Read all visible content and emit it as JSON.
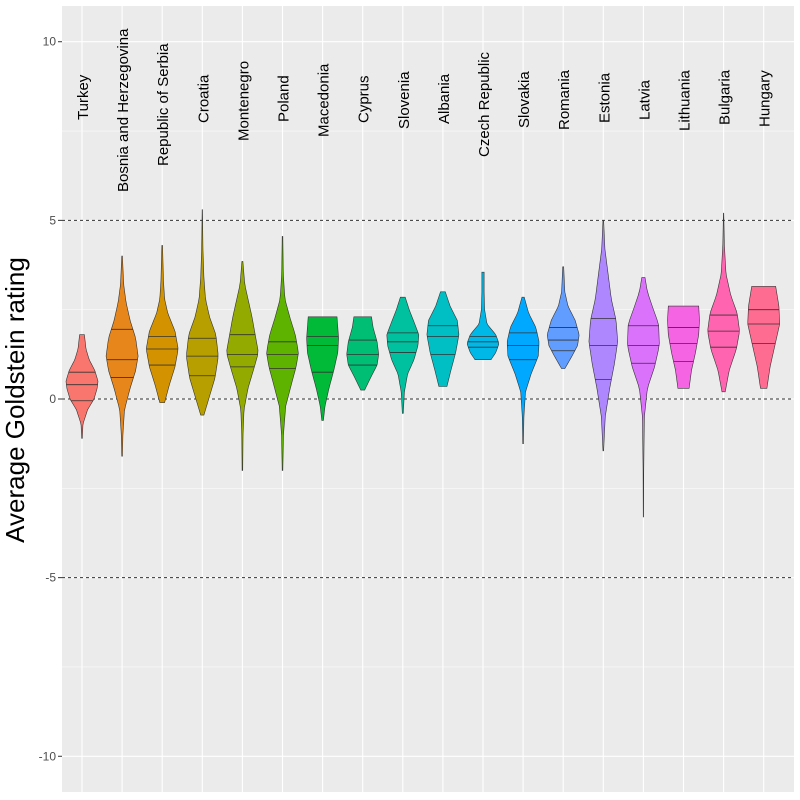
{
  "chart_data": {
    "type": "violin",
    "ylabel": "Average Goldstein rating",
    "ylim": [
      -11,
      11
    ],
    "yticks": [
      "-10",
      "-5",
      "0",
      "5",
      "10"
    ],
    "ytick_values": [
      -10,
      -5,
      0,
      5,
      10
    ],
    "dashed_reference_lines": [
      5,
      0,
      -5
    ],
    "grid": true,
    "legend": "none",
    "series": [
      {
        "name": "Turkey",
        "color": "#F8766D",
        "min": -1.1,
        "max": 1.8,
        "q1": -0.05,
        "median": 0.4,
        "q3": 0.75,
        "profile": [
          [
            -1.1,
            0.02
          ],
          [
            -0.7,
            0.06
          ],
          [
            -0.3,
            0.35
          ],
          [
            0.0,
            0.75
          ],
          [
            0.3,
            0.95
          ],
          [
            0.5,
            1.0
          ],
          [
            0.8,
            0.8
          ],
          [
            1.1,
            0.45
          ],
          [
            1.4,
            0.25
          ],
          [
            1.8,
            0.15
          ]
        ]
      },
      {
        "name": "Bosnia and Herzegovina",
        "color": "#E7861B",
        "min": -1.6,
        "max": 4.0,
        "q1": 0.6,
        "median": 1.1,
        "q3": 1.95,
        "profile": [
          [
            -1.6,
            0.02
          ],
          [
            -1.0,
            0.05
          ],
          [
            -0.3,
            0.15
          ],
          [
            0.3,
            0.5
          ],
          [
            0.8,
            0.85
          ],
          [
            1.2,
            1.0
          ],
          [
            1.7,
            0.85
          ],
          [
            2.2,
            0.5
          ],
          [
            2.7,
            0.25
          ],
          [
            3.2,
            0.1
          ],
          [
            4.0,
            0.02
          ]
        ]
      },
      {
        "name": "Republic of Serbia",
        "color": "#D39200",
        "min": -0.1,
        "max": 4.3,
        "q1": 0.95,
        "median": 1.4,
        "q3": 1.75,
        "profile": [
          [
            -0.1,
            0.15
          ],
          [
            0.4,
            0.45
          ],
          [
            0.9,
            0.8
          ],
          [
            1.4,
            1.0
          ],
          [
            1.9,
            0.8
          ],
          [
            2.4,
            0.35
          ],
          [
            2.8,
            0.15
          ],
          [
            3.3,
            0.08
          ],
          [
            4.3,
            0.02
          ]
        ]
      },
      {
        "name": "Croatia",
        "color": "#B79F00",
        "min": -0.45,
        "max": 5.3,
        "q1": 0.65,
        "median": 1.2,
        "q3": 1.7,
        "profile": [
          [
            -0.45,
            0.1
          ],
          [
            0.0,
            0.4
          ],
          [
            0.6,
            0.8
          ],
          [
            1.2,
            1.0
          ],
          [
            1.8,
            0.85
          ],
          [
            2.3,
            0.45
          ],
          [
            2.8,
            0.2
          ],
          [
            3.4,
            0.1
          ],
          [
            4.2,
            0.04
          ],
          [
            5.3,
            0.01
          ]
        ]
      },
      {
        "name": "Montenegro",
        "color": "#93AA00",
        "min": -2.0,
        "max": 3.85,
        "q1": 0.9,
        "median": 1.25,
        "q3": 1.8,
        "profile": [
          [
            -2.0,
            0.02
          ],
          [
            -1.0,
            0.04
          ],
          [
            -0.3,
            0.1
          ],
          [
            0.3,
            0.35
          ],
          [
            0.9,
            0.75
          ],
          [
            1.3,
            1.0
          ],
          [
            1.8,
            0.8
          ],
          [
            2.3,
            0.6
          ],
          [
            2.7,
            0.4
          ],
          [
            3.2,
            0.15
          ],
          [
            3.85,
            0.03
          ]
        ]
      },
      {
        "name": "Poland",
        "color": "#5EB300",
        "min": -2.0,
        "max": 4.55,
        "q1": 0.85,
        "median": 1.25,
        "q3": 1.6,
        "profile": [
          [
            -2.0,
            0.02
          ],
          [
            -1.0,
            0.06
          ],
          [
            -0.2,
            0.2
          ],
          [
            0.4,
            0.55
          ],
          [
            0.9,
            0.85
          ],
          [
            1.3,
            1.0
          ],
          [
            1.8,
            0.8
          ],
          [
            2.3,
            0.45
          ],
          [
            2.8,
            0.15
          ],
          [
            3.5,
            0.05
          ],
          [
            4.55,
            0.02
          ]
        ]
      },
      {
        "name": "Macedonia",
        "color": "#00BA38",
        "min": -0.6,
        "max": 2.3,
        "q1": 0.75,
        "median": 1.5,
        "q3": 1.75,
        "profile": [
          [
            -0.6,
            0.05
          ],
          [
            -0.2,
            0.15
          ],
          [
            0.3,
            0.4
          ],
          [
            0.8,
            0.7
          ],
          [
            1.3,
            0.95
          ],
          [
            1.7,
            1.0
          ],
          [
            2.0,
            0.95
          ],
          [
            2.3,
            0.9
          ]
        ]
      },
      {
        "name": "Cyprus",
        "color": "#00BF74",
        "min": 0.25,
        "max": 2.3,
        "q1": 0.95,
        "median": 1.25,
        "q3": 1.65,
        "profile": [
          [
            0.25,
            0.12
          ],
          [
            0.6,
            0.5
          ],
          [
            0.95,
            0.9
          ],
          [
            1.25,
            1.0
          ],
          [
            1.6,
            0.9
          ],
          [
            2.0,
            0.65
          ],
          [
            2.3,
            0.55
          ]
        ]
      },
      {
        "name": "Slovenia",
        "color": "#00C19F",
        "min": -0.4,
        "max": 2.85,
        "q1": 1.3,
        "median": 1.6,
        "q3": 1.85,
        "profile": [
          [
            -0.4,
            0.03
          ],
          [
            0.2,
            0.1
          ],
          [
            0.7,
            0.3
          ],
          [
            1.1,
            0.7
          ],
          [
            1.5,
            0.95
          ],
          [
            1.8,
            1.0
          ],
          [
            2.1,
            0.75
          ],
          [
            2.5,
            0.4
          ],
          [
            2.85,
            0.15
          ]
        ]
      },
      {
        "name": "Albania",
        "color": "#00BFC4",
        "min": 0.35,
        "max": 3.0,
        "q1": 1.25,
        "median": 1.75,
        "q3": 2.05,
        "profile": [
          [
            0.35,
            0.25
          ],
          [
            0.8,
            0.5
          ],
          [
            1.3,
            0.8
          ],
          [
            1.8,
            1.0
          ],
          [
            2.2,
            0.9
          ],
          [
            2.6,
            0.45
          ],
          [
            3.0,
            0.15
          ]
        ]
      },
      {
        "name": "Czech Republic",
        "color": "#00B8E7",
        "min": 1.1,
        "max": 3.55,
        "q1": 1.45,
        "median": 1.6,
        "q3": 1.75,
        "profile": [
          [
            1.1,
            0.5
          ],
          [
            1.3,
            0.8
          ],
          [
            1.55,
            1.0
          ],
          [
            1.8,
            0.8
          ],
          [
            2.1,
            0.25
          ],
          [
            2.5,
            0.1
          ],
          [
            3.0,
            0.07
          ],
          [
            3.55,
            0.07
          ]
        ]
      },
      {
        "name": "Slovakia",
        "color": "#00A9FF",
        "min": -1.25,
        "max": 2.85,
        "q1": 1.1,
        "median": 1.5,
        "q3": 1.85,
        "profile": [
          [
            -1.25,
            0.02
          ],
          [
            -0.5,
            0.05
          ],
          [
            0.2,
            0.15
          ],
          [
            0.7,
            0.5
          ],
          [
            1.2,
            0.95
          ],
          [
            1.6,
            1.0
          ],
          [
            2.0,
            0.8
          ],
          [
            2.4,
            0.35
          ],
          [
            2.85,
            0.07
          ]
        ]
      },
      {
        "name": "Romania",
        "color": "#619CFF",
        "min": 0.85,
        "max": 3.7,
        "q1": 1.35,
        "median": 1.65,
        "q3": 2.0,
        "profile": [
          [
            0.85,
            0.1
          ],
          [
            1.2,
            0.55
          ],
          [
            1.5,
            0.9
          ],
          [
            1.8,
            1.0
          ],
          [
            2.2,
            0.75
          ],
          [
            2.6,
            0.3
          ],
          [
            3.0,
            0.1
          ],
          [
            3.7,
            0.03
          ]
        ]
      },
      {
        "name": "Estonia",
        "color": "#AE87FF",
        "min": -1.45,
        "max": 5.0,
        "q1": 0.55,
        "median": 1.5,
        "q3": 2.25,
        "profile": [
          [
            -1.45,
            0.02
          ],
          [
            -0.5,
            0.12
          ],
          [
            0.3,
            0.4
          ],
          [
            1.0,
            0.7
          ],
          [
            1.6,
            0.9
          ],
          [
            2.2,
            0.8
          ],
          [
            2.8,
            0.5
          ],
          [
            3.5,
            0.3
          ],
          [
            4.2,
            0.1
          ],
          [
            5.0,
            0.02
          ]
        ]
      },
      {
        "name": "Latvia",
        "color": "#DB72FB",
        "min": -3.3,
        "max": 3.4,
        "q1": 1.0,
        "median": 1.5,
        "q3": 2.05,
        "profile": [
          [
            -3.3,
            0.01
          ],
          [
            -2.0,
            0.02
          ],
          [
            -0.5,
            0.06
          ],
          [
            0.3,
            0.25
          ],
          [
            0.9,
            0.7
          ],
          [
            1.5,
            1.0
          ],
          [
            2.1,
            0.95
          ],
          [
            2.6,
            0.55
          ],
          [
            3.0,
            0.25
          ],
          [
            3.4,
            0.1
          ]
        ]
      },
      {
        "name": "Lithuania",
        "color": "#F564E3",
        "min": 0.3,
        "max": 2.6,
        "q1": 1.05,
        "median": 1.55,
        "q3": 2.0,
        "profile": [
          [
            0.3,
            0.35
          ],
          [
            0.8,
            0.5
          ],
          [
            1.3,
            0.75
          ],
          [
            1.8,
            0.95
          ],
          [
            2.2,
            1.0
          ],
          [
            2.6,
            0.95
          ]
        ]
      },
      {
        "name": "Bulgaria",
        "color": "#FF64B0",
        "min": 0.2,
        "max": 5.2,
        "q1": 1.45,
        "median": 1.9,
        "q3": 2.35,
        "profile": [
          [
            0.2,
            0.1
          ],
          [
            0.8,
            0.35
          ],
          [
            1.4,
            0.8
          ],
          [
            1.9,
            1.0
          ],
          [
            2.4,
            0.85
          ],
          [
            2.9,
            0.45
          ],
          [
            3.5,
            0.15
          ],
          [
            4.3,
            0.05
          ],
          [
            5.2,
            0.01
          ]
        ]
      },
      {
        "name": "Hungary",
        "color": "#FF6C91",
        "min": 0.3,
        "max": 3.15,
        "q1": 1.55,
        "median": 2.1,
        "q3": 2.5,
        "profile": [
          [
            0.3,
            0.2
          ],
          [
            0.9,
            0.4
          ],
          [
            1.5,
            0.7
          ],
          [
            2.1,
            1.0
          ],
          [
            2.6,
            0.95
          ],
          [
            3.15,
            0.75
          ]
        ]
      }
    ]
  }
}
